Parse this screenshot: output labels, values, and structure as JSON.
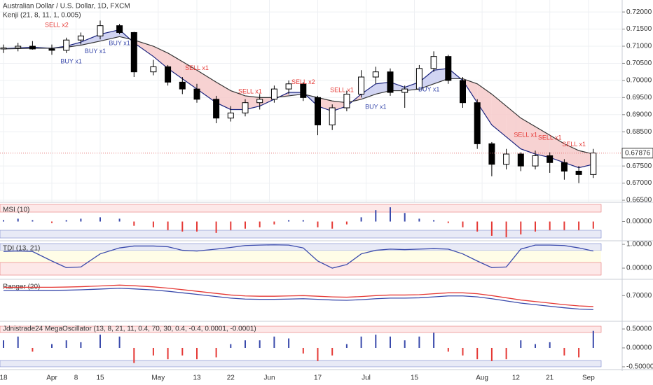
{
  "chart_data": [
    {
      "type": "candlestick",
      "title": "Australian Dollar / U.S. Dollar, 1D, FXCM",
      "subtitle": "Kenji (21, 8, 11, 1, 0.005)",
      "x": [
        0,
        3,
        6,
        10,
        13,
        16,
        20,
        24,
        27,
        31,
        34,
        37,
        40,
        44,
        47,
        50,
        53,
        56,
        59,
        62,
        65,
        68,
        71,
        74,
        77,
        80,
        83,
        86,
        89,
        92,
        95,
        98,
        101,
        104,
        107,
        110,
        113,
        116,
        119,
        122
      ],
      "open": [
        0.7092,
        0.7095,
        0.71,
        0.7092,
        0.7088,
        0.7118,
        0.713,
        0.716,
        0.714,
        0.7025,
        0.704,
        0.6995,
        0.6975,
        0.6945,
        0.689,
        0.6905,
        0.6935,
        0.6945,
        0.6975,
        0.699,
        0.695,
        0.687,
        0.692,
        0.696,
        0.701,
        0.7025,
        0.6965,
        0.6975,
        0.7035,
        0.707,
        0.7,
        0.6935,
        0.6815,
        0.6755,
        0.6785,
        0.675,
        0.678,
        0.676,
        0.6735,
        0.6725
      ],
      "high": [
        0.7105,
        0.711,
        0.7115,
        0.7105,
        0.7125,
        0.714,
        0.7175,
        0.7165,
        0.7142,
        0.706,
        0.7045,
        0.701,
        0.699,
        0.6955,
        0.6925,
        0.6945,
        0.696,
        0.6985,
        0.7,
        0.6995,
        0.6955,
        0.693,
        0.697,
        0.703,
        0.704,
        0.7035,
        0.6985,
        0.7045,
        0.7085,
        0.7075,
        0.701,
        0.6945,
        0.682,
        0.68,
        0.679,
        0.6795,
        0.679,
        0.677,
        0.675,
        0.68
      ],
      "low": [
        0.708,
        0.7085,
        0.709,
        0.7075,
        0.708,
        0.7105,
        0.712,
        0.7135,
        0.701,
        0.7015,
        0.6985,
        0.696,
        0.6935,
        0.6875,
        0.688,
        0.6895,
        0.6915,
        0.6935,
        0.696,
        0.694,
        0.684,
        0.6855,
        0.691,
        0.695,
        0.699,
        0.6955,
        0.692,
        0.697,
        0.7025,
        0.699,
        0.692,
        0.68,
        0.672,
        0.674,
        0.6735,
        0.674,
        0.673,
        0.671,
        0.67,
        0.6715
      ],
      "close": [
        0.7095,
        0.71,
        0.7092,
        0.7088,
        0.7118,
        0.713,
        0.716,
        0.714,
        0.7025,
        0.704,
        0.6995,
        0.6975,
        0.6945,
        0.689,
        0.6905,
        0.6935,
        0.6945,
        0.6975,
        0.699,
        0.695,
        0.687,
        0.692,
        0.696,
        0.701,
        0.7025,
        0.6965,
        0.6975,
        0.7035,
        0.707,
        0.7,
        0.6935,
        0.6815,
        0.6755,
        0.6785,
        0.675,
        0.678,
        0.676,
        0.6735,
        0.6725,
        0.6788
      ],
      "series": [
        {
          "color": "#1a237e",
          "values": [
            0.7093,
            0.7095,
            0.7097,
            0.7094,
            0.71,
            0.7112,
            0.7135,
            0.7148,
            0.711,
            0.707,
            0.7035,
            0.7005,
            0.6975,
            0.6935,
            0.6915,
            0.6915,
            0.6925,
            0.6945,
            0.6965,
            0.6965,
            0.6925,
            0.691,
            0.6925,
            0.696,
            0.699,
            0.6995,
            0.698,
            0.6995,
            0.703,
            0.7035,
            0.7,
            0.6935,
            0.687,
            0.6835,
            0.68,
            0.6785,
            0.6775,
            0.676,
            0.6745,
            0.6755
          ]
        },
        {
          "color": "#333333",
          "values": [
            0.7092,
            0.7093,
            0.7094,
            0.7094,
            0.7097,
            0.7103,
            0.7115,
            0.7128,
            0.7118,
            0.71,
            0.708,
            0.7055,
            0.703,
            0.6995,
            0.697,
            0.6955,
            0.695,
            0.695,
            0.6955,
            0.696,
            0.695,
            0.694,
            0.6935,
            0.6945,
            0.696,
            0.697,
            0.697,
            0.6975,
            0.699,
            0.7005,
            0.7005,
            0.699,
            0.696,
            0.6925,
            0.689,
            0.6865,
            0.684,
            0.6815,
            0.6795,
            0.6785
          ]
        }
      ],
      "cloud_colors": {
        "up": "#c9cdf0",
        "down": "#f6caca"
      },
      "annotations": [
        {
          "text": "SELL x2",
          "x": 11,
          "y": 0.7161
        },
        {
          "text": "BUY x1",
          "x": 14,
          "y": 0.7055
        },
        {
          "text": "BUY x1",
          "x": 19,
          "y": 0.7084
        },
        {
          "text": "BUY x1",
          "x": 24,
          "y": 0.7108
        },
        {
          "text": "SELL x1",
          "x": 40,
          "y": 0.7035
        },
        {
          "text": "SELL x1",
          "x": 51,
          "y": 0.6967
        },
        {
          "text": "SELL x2",
          "x": 62,
          "y": 0.6994
        },
        {
          "text": "SELL x1",
          "x": 70,
          "y": 0.6971
        },
        {
          "text": "BUY x1",
          "x": 77,
          "y": 0.6922
        },
        {
          "text": "BUY x1",
          "x": 88,
          "y": 0.6973
        },
        {
          "text": "SELL x1",
          "x": 108,
          "y": 0.684
        },
        {
          "text": "SELL x1",
          "x": 113,
          "y": 0.6832
        },
        {
          "text": "SELL x1",
          "x": 118,
          "y": 0.6812
        }
      ],
      "last_price": {
        "value": 0.67876,
        "label": "0.67876"
      },
      "xlim": [
        0,
        124
      ],
      "xticks": [
        {
          "value": 0,
          "label": "18"
        },
        {
          "value": 10,
          "label": "Apr"
        },
        {
          "value": 15,
          "label": "8"
        },
        {
          "value": 20,
          "label": "15"
        },
        {
          "value": 32,
          "label": "May"
        },
        {
          "value": 40,
          "label": "13"
        },
        {
          "value": 47,
          "label": "22"
        },
        {
          "value": 55,
          "label": "Jun"
        },
        {
          "value": 65,
          "label": "17"
        },
        {
          "value": 75,
          "label": "Jul"
        },
        {
          "value": 85,
          "label": "15"
        },
        {
          "value": 99,
          "label": "Aug"
        },
        {
          "value": 106,
          "label": "12"
        },
        {
          "value": 113,
          "label": "21"
        },
        {
          "value": 121,
          "label": "Sep"
        }
      ],
      "ylim": [
        0.6646,
        0.7235
      ],
      "yticks": [
        {
          "value": 0.72,
          "label": "0.72000"
        },
        {
          "value": 0.715,
          "label": "0.71500"
        },
        {
          "value": 0.71,
          "label": "0.71000"
        },
        {
          "value": 0.705,
          "label": "0.70500"
        },
        {
          "value": 0.7,
          "label": "0.70000"
        },
        {
          "value": 0.695,
          "label": "0.69500"
        },
        {
          "value": 0.69,
          "label": "0.69000"
        },
        {
          "value": 0.685,
          "label": "0.68500"
        },
        {
          "value": 0.675,
          "label": "0.67500"
        },
        {
          "value": 0.67,
          "label": "0.67000"
        },
        {
          "value": 0.665,
          "label": "0.66500"
        }
      ],
      "grid": true
    },
    {
      "type": "bar",
      "title": "MSI (10)",
      "colors": {
        "up": "#3949ab",
        "down": "#e53935"
      },
      "values": [
        0.1,
        0.2,
        0.1,
        -0.1,
        0.1,
        0.2,
        0.3,
        0.2,
        -0.3,
        -0.4,
        -0.6,
        -0.7,
        -0.7,
        -0.8,
        -0.6,
        -0.5,
        -0.4,
        -0.2,
        0.1,
        0.1,
        -0.4,
        -0.5,
        -0.2,
        0.3,
        0.8,
        1.0,
        0.6,
        0.2,
        0.1,
        -0.1,
        -0.4,
        -0.7,
        -1.0,
        -1.1,
        -0.9,
        -0.7,
        -0.6,
        -0.6,
        -0.6,
        -0.5
      ],
      "ylim": [
        -1.3,
        1.3
      ],
      "yticks": [
        {
          "value": 0,
          "label": "0.00000"
        }
      ]
    },
    {
      "type": "line",
      "title": "TDI (13, 21)",
      "color": "#3949ab",
      "values": [
        0.7,
        0.72,
        0.7,
        0.3,
        0.02,
        0.05,
        0.6,
        0.85,
        0.93,
        0.93,
        0.9,
        0.75,
        0.72,
        0.8,
        0.87,
        0.95,
        0.97,
        0.98,
        0.97,
        0.85,
        0.3,
        0.0,
        0.15,
        0.6,
        0.75,
        0.8,
        0.78,
        0.8,
        0.82,
        0.8,
        0.6,
        0.3,
        0.02,
        0.05,
        0.8,
        0.97,
        0.97,
        0.95,
        0.85,
        0.72
      ],
      "ylim": [
        -0.44,
        1.12
      ],
      "yticks": [
        {
          "value": 1,
          "label": "1.00000"
        },
        {
          "value": 0,
          "label": "0.00000"
        }
      ]
    },
    {
      "type": "line",
      "title": "Ranger (20)",
      "series": [
        {
          "color": "#e53935",
          "values": [
            0.7132,
            0.7133,
            0.7134,
            0.7134,
            0.7137,
            0.7143,
            0.7155,
            0.7168,
            0.7158,
            0.714,
            0.712,
            0.7095,
            0.707,
            0.7035,
            0.701,
            0.6995,
            0.699,
            0.699,
            0.6995,
            0.7,
            0.699,
            0.698,
            0.6975,
            0.6985,
            0.7,
            0.701,
            0.701,
            0.7015,
            0.703,
            0.7045,
            0.7045,
            0.703,
            0.7,
            0.6965,
            0.693,
            0.6905,
            0.688,
            0.6855,
            0.6835,
            0.6825
          ]
        },
        {
          "color": "#3949ab",
          "values": [
            0.7082,
            0.7083,
            0.7084,
            0.7084,
            0.7087,
            0.7093,
            0.7105,
            0.7118,
            0.7108,
            0.709,
            0.707,
            0.7045,
            0.702,
            0.6985,
            0.696,
            0.6945,
            0.694,
            0.694,
            0.6945,
            0.695,
            0.694,
            0.693,
            0.6925,
            0.6935,
            0.695,
            0.696,
            0.696,
            0.6965,
            0.698,
            0.6995,
            0.6995,
            0.698,
            0.695,
            0.6915,
            0.688,
            0.6855,
            0.683,
            0.6805,
            0.6785,
            0.6775
          ]
        }
      ],
      "ylim": [
        0.66,
        0.725
      ],
      "yticks": [
        {
          "value": 0.7,
          "label": "0.70000"
        }
      ]
    },
    {
      "type": "bar",
      "title": "Jdnistrade24 MegaOscillator (13, 8, 21, 11, 0.4, 70, 30, 0.4, -0.4, 0.0001, -0.0001)",
      "colors": {
        "up": "#3949ab",
        "down": "#e53935"
      },
      "values": [
        0.2,
        0.3,
        -0.1,
        0.1,
        0.2,
        0.15,
        0.35,
        0.3,
        -0.4,
        -0.2,
        -0.3,
        -0.2,
        -0.3,
        -0.25,
        0.1,
        0.2,
        0.2,
        0.3,
        0.25,
        -0.15,
        -0.35,
        -0.2,
        0.1,
        0.3,
        0.35,
        0.3,
        0.2,
        0.3,
        0.4,
        -0.1,
        -0.2,
        -0.3,
        -0.35,
        -0.3,
        0.2,
        0.1,
        0.15,
        -0.2,
        -0.25,
        0.45
      ],
      "ylim": [
        -0.556,
        0.685
      ],
      "yticks": [
        {
          "value": 0.5,
          "label": "0.50000"
        },
        {
          "value": 0,
          "label": "0.00000"
        },
        {
          "value": -0.5,
          "label": "-0.50000"
        }
      ]
    }
  ]
}
